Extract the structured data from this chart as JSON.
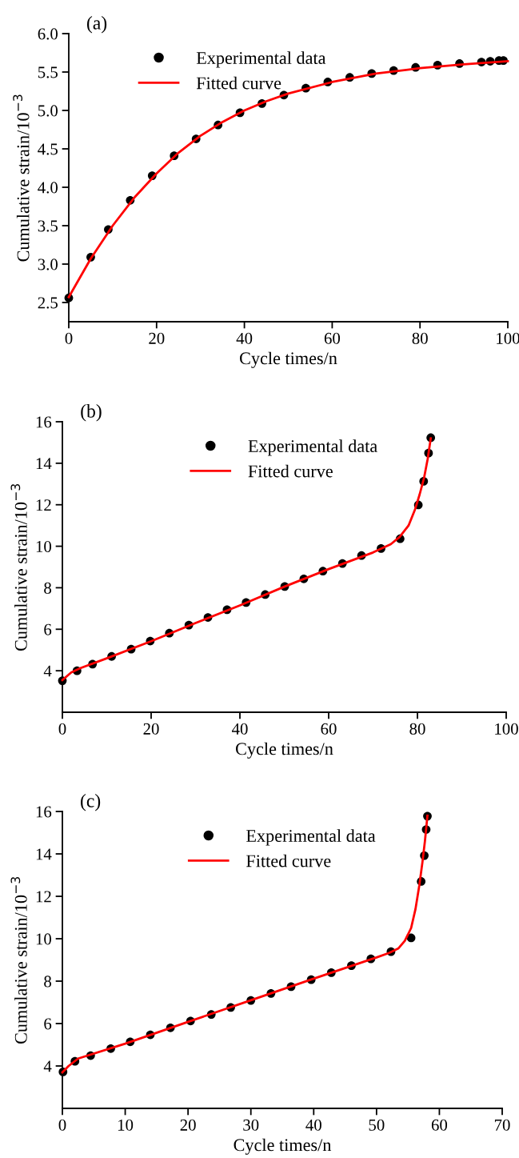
{
  "chart_data": [
    {
      "type": "scatter",
      "title": "(a)",
      "xlabel": "Cycle times/n",
      "ylabel": "Cumulative strain/10$^{−3}$",
      "xlim": [
        0,
        100
      ],
      "xticks": [
        0,
        20,
        40,
        60,
        80,
        100
      ],
      "ylim": [
        2.25,
        6.0
      ],
      "yticks": [
        2.5,
        {
          "value": 3,
          "label": "3.0"
        },
        3.5,
        {
          "value": 4,
          "label": "4.0"
        },
        4.5,
        {
          "value": 5,
          "label": "5.0"
        },
        5.5,
        {
          "value": 6,
          "label": "6.0"
        }
      ],
      "grid": false,
      "legend": "top left",
      "series": [
        {
          "name": "Experimental data",
          "marker": "circle",
          "color": "#000000",
          "x": [
            0,
            5,
            9,
            14,
            19,
            24,
            29,
            34,
            39,
            44,
            49,
            54,
            59,
            64,
            69,
            74,
            79,
            84,
            89,
            94,
            96,
            98,
            99
          ],
          "values": [
            2.56,
            3.09,
            3.45,
            3.83,
            4.15,
            4.41,
            4.63,
            4.81,
            4.97,
            5.09,
            5.2,
            5.29,
            5.37,
            5.43,
            5.48,
            5.52,
            5.56,
            5.59,
            5.61,
            5.63,
            5.64,
            5.65,
            5.65
          ]
        },
        {
          "name": "Fitted curve",
          "type": "line",
          "color": "#ff0000",
          "x": [
            0,
            5,
            10,
            15,
            20,
            25,
            30,
            35,
            40,
            45,
            50,
            60,
            70,
            80,
            90,
            100
          ],
          "values": [
            2.57,
            3.07,
            3.5,
            3.87,
            4.18,
            4.45,
            4.67,
            4.85,
            5.0,
            5.12,
            5.22,
            5.37,
            5.48,
            5.55,
            5.6,
            5.64
          ]
        }
      ]
    },
    {
      "type": "scatter",
      "title": "(b)",
      "xlabel": "Cycle times/n",
      "ylabel": "Cumulative strain/10$^{−3}$",
      "xlim": [
        0,
        100
      ],
      "xticks": [
        0,
        20,
        40,
        60,
        80,
        100
      ],
      "ylim": [
        2,
        16
      ],
      "yticks": [
        4,
        6,
        8,
        10,
        12,
        14,
        16
      ],
      "grid": false,
      "legend": "top",
      "series": [
        {
          "name": "Experimental data",
          "marker": "circle",
          "color": "#000000",
          "x": [
            0,
            3.3,
            6.8,
            11.1,
            15.5,
            19.8,
            24.1,
            28.5,
            32.8,
            37.1,
            41.4,
            45.7,
            50.1,
            54.4,
            58.7,
            63.1,
            67.4,
            71.8,
            76.1,
            80.2,
            81.4,
            82.5,
            83.0
          ],
          "values": [
            3.52,
            4.0,
            4.32,
            4.69,
            5.04,
            5.43,
            5.81,
            6.2,
            6.57,
            6.94,
            7.29,
            7.67,
            8.06,
            8.43,
            8.8,
            9.17,
            9.55,
            9.89,
            10.36,
            11.99,
            13.13,
            14.49,
            15.23
          ]
        },
        {
          "name": "Fitted curve",
          "type": "line",
          "color": "#ff0000",
          "x": [
            0,
            2,
            4,
            10,
            20,
            30,
            40,
            50,
            60,
            70,
            74,
            76,
            78,
            79.5,
            80.5,
            81.5,
            82.3,
            83
          ],
          "values": [
            3.55,
            3.92,
            4.12,
            4.6,
            5.42,
            6.3,
            7.15,
            8.05,
            8.9,
            9.7,
            10.1,
            10.45,
            11.0,
            11.8,
            12.5,
            13.3,
            14.2,
            15.2
          ]
        }
      ]
    },
    {
      "type": "scatter",
      "title": "(c)",
      "xlabel": "Cycle times/n",
      "ylabel": "Cumulative strain/10$^{−3}$",
      "xlim": [
        0,
        70
      ],
      "xticks": [
        0,
        10,
        20,
        30,
        40,
        50,
        60,
        70
      ],
      "ylim": [
        2,
        16
      ],
      "yticks": [
        4,
        6,
        8,
        10,
        12,
        14,
        16
      ],
      "grid": false,
      "legend": "top",
      "series": [
        {
          "name": "Experimental data",
          "marker": "circle",
          "color": "#000000",
          "x": [
            0.1,
            2.0,
            4.5,
            7.7,
            10.8,
            14.0,
            17.2,
            20.4,
            23.7,
            26.8,
            30.0,
            33.2,
            36.4,
            39.6,
            42.8,
            46.0,
            49.1,
            52.3,
            55.5,
            57.1,
            57.6,
            57.9,
            58.1
          ],
          "values": [
            3.72,
            4.22,
            4.49,
            4.82,
            5.14,
            5.47,
            5.8,
            6.12,
            6.43,
            6.76,
            7.09,
            7.42,
            7.74,
            8.07,
            8.4,
            8.73,
            9.05,
            9.39,
            10.04,
            12.7,
            13.92,
            15.15,
            15.78
          ]
        },
        {
          "name": "Fitted curve",
          "type": "line",
          "color": "#ff0000",
          "x": [
            0,
            1,
            2.5,
            10,
            20,
            30,
            40,
            50,
            52,
            53.5,
            54.5,
            55.5,
            56.2,
            56.8,
            57.3,
            57.7,
            58.1
          ],
          "values": [
            3.7,
            4.0,
            4.35,
            5.05,
            6.08,
            7.1,
            8.12,
            9.12,
            9.33,
            9.55,
            9.9,
            10.5,
            11.4,
            12.5,
            13.6,
            14.6,
            15.8
          ]
        }
      ]
    }
  ]
}
